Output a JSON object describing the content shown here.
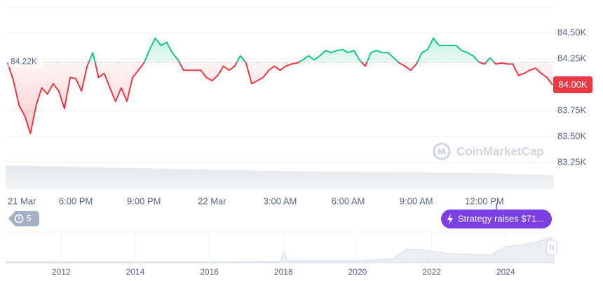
{
  "chart_data": {
    "type": "line",
    "values": [
      84210,
      84040,
      83800,
      83700,
      83530,
      83800,
      83970,
      83910,
      84010,
      83940,
      83770,
      84070,
      84060,
      83940,
      84180,
      84310,
      84070,
      84110,
      83970,
      83840,
      83970,
      83840,
      84070,
      84140,
      84210,
      84340,
      84450,
      84380,
      84410,
      84310,
      84240,
      84140,
      84140,
      84140,
      84140,
      84070,
      84040,
      84090,
      84180,
      84140,
      84180,
      84280,
      84210,
      84010,
      84040,
      84070,
      84140,
      84180,
      84140,
      84180,
      84200,
      84210,
      84240,
      84280,
      84240,
      84280,
      84330,
      84310,
      84330,
      84340,
      84310,
      84330,
      84240,
      84180,
      84310,
      84330,
      84310,
      84310,
      84260,
      84210,
      84180,
      84140,
      84200,
      84310,
      84340,
      84450,
      84380,
      84380,
      84380,
      84380,
      84330,
      84310,
      84280,
      84220,
      84200,
      84260,
      84200,
      84210,
      84200,
      84200,
      84090,
      84110,
      84140,
      84160,
      84110,
      84070,
      84000
    ],
    "colors": {
      "up": "#16c784",
      "down": "#ea3943"
    },
    "ylim": [
      83250,
      84750
    ],
    "yticks": [
      {
        "value": 83250,
        "label": "83.25K"
      },
      {
        "value": 83500,
        "label": "83.50K"
      },
      {
        "value": 83750,
        "label": "83.75K"
      },
      {
        "value": 84250,
        "label": "84.25K"
      },
      {
        "value": 84500,
        "label": "84.50K"
      }
    ],
    "xticks": [
      {
        "value": 0,
        "label": "21 Mar"
      },
      {
        "value": 12,
        "label": "6:00 PM"
      },
      {
        "value": 24,
        "label": "9:00 PM"
      },
      {
        "value": 36,
        "label": "22 Mar"
      },
      {
        "value": 48,
        "label": "3:00 AM"
      },
      {
        "value": 60,
        "label": "6:00 AM"
      },
      {
        "value": 72,
        "label": "9:00 AM"
      },
      {
        "value": 84,
        "label": "12:00 PM"
      }
    ],
    "reference": {
      "value": 84220,
      "label": "84.22K"
    },
    "last_price": {
      "value": 84000,
      "label": "84.00K"
    },
    "grid": true,
    "watermark": "CoinMarketCap",
    "events_badge": "5",
    "news_tag": "Strategy raises $71...",
    "navigator": {
      "xlim": [
        2010.5,
        2025.3
      ],
      "xticks": [
        2012,
        2014,
        2016,
        2018,
        2020,
        2022,
        2024
      ]
    }
  }
}
